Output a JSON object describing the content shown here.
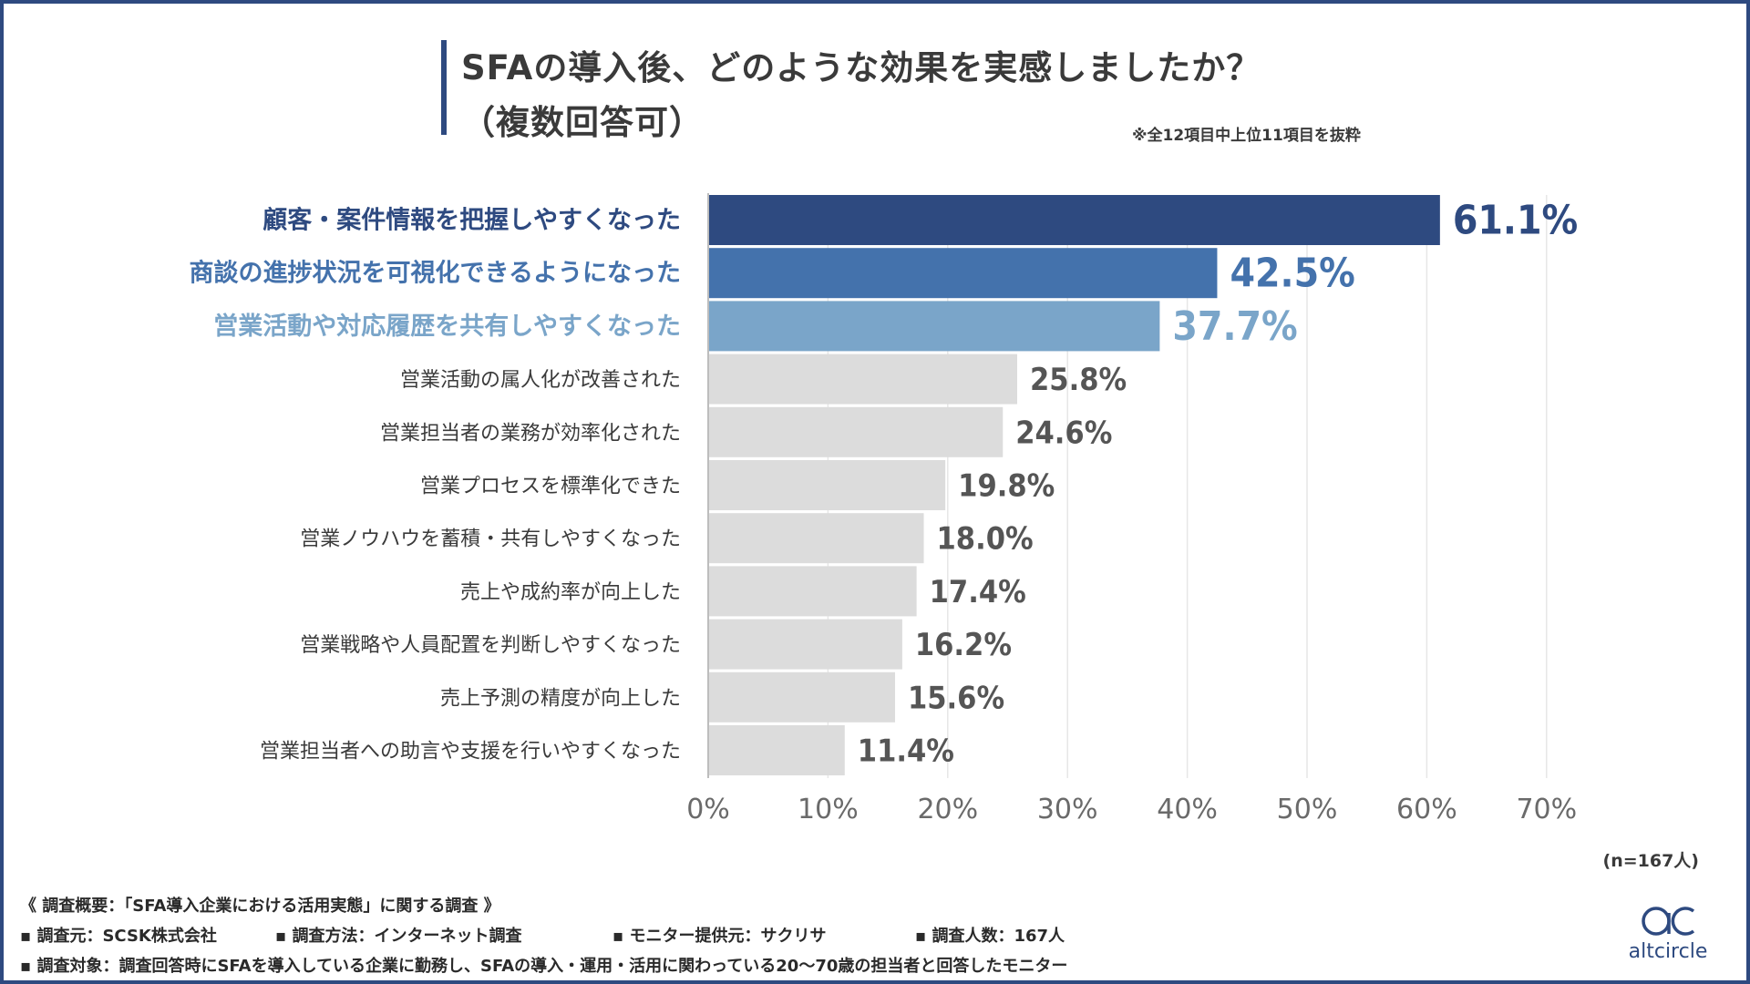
{
  "title": {
    "line1": "SFAの導入後、どのような効果を実感しましたか？",
    "line2": "（複数回答可）"
  },
  "note": "※全12項目中上位11項目を抜粋",
  "sample_size": "(n=167人)",
  "colors": {
    "frame": "#2e4a80",
    "top1": "#2e4a80",
    "top2": "#4472ac",
    "top3": "#7aa5c9",
    "other": "#dcdcdc",
    "label_other": "#3a3a3a",
    "value_other": "#555555"
  },
  "chart_data": {
    "type": "bar",
    "orientation": "horizontal",
    "categories": [
      "顧客・案件情報を把握しやすくなった",
      "商談の進捗状況を可視化できるようになった",
      "営業活動や対応履歴を共有しやすくなった",
      "営業活動の属人化が改善された",
      "営業担当者の業務が効率化された",
      "営業プロセスを標準化できた",
      "営業ノウハウを蓄積・共有しやすくなった",
      "売上や成約率が向上した",
      "営業戦略や人員配置を判断しやすくなった",
      "売上予測の精度が向上した",
      "営業担当者への助言や支援を行いやすくなった"
    ],
    "values": [
      61.1,
      42.5,
      37.7,
      25.8,
      24.6,
      19.8,
      18.0,
      17.4,
      16.2,
      15.6,
      11.4
    ],
    "value_labels": [
      "61.1%",
      "42.5%",
      "37.7%",
      "25.8%",
      "24.6%",
      "19.8%",
      "18.0%",
      "17.4%",
      "16.2%",
      "15.6%",
      "11.4%"
    ],
    "xlim": [
      0,
      70
    ],
    "x_ticks": [
      "0%",
      "10%",
      "20%",
      "30%",
      "40%",
      "50%",
      "60%",
      "70%"
    ],
    "grid": true
  },
  "footer": {
    "title": "《 調査概要：「SFA導入企業における活用実態」に関する調査 》",
    "items": [
      "▪ 調査元：SCSK株式会社",
      "▪ 調査方法：インターネット調査",
      "▪ モニター提供元：サクリサ",
      "▪ 調査人数：167人"
    ],
    "target": "▪ 調査対象：調査回答時にSFAを導入している企業に勤務し、SFAの導入・運用・活用に関わっている20〜70歳の担当者と回答したモニター"
  },
  "logo": {
    "text": "altcircle",
    "icon": "altcircle-logo-icon"
  }
}
